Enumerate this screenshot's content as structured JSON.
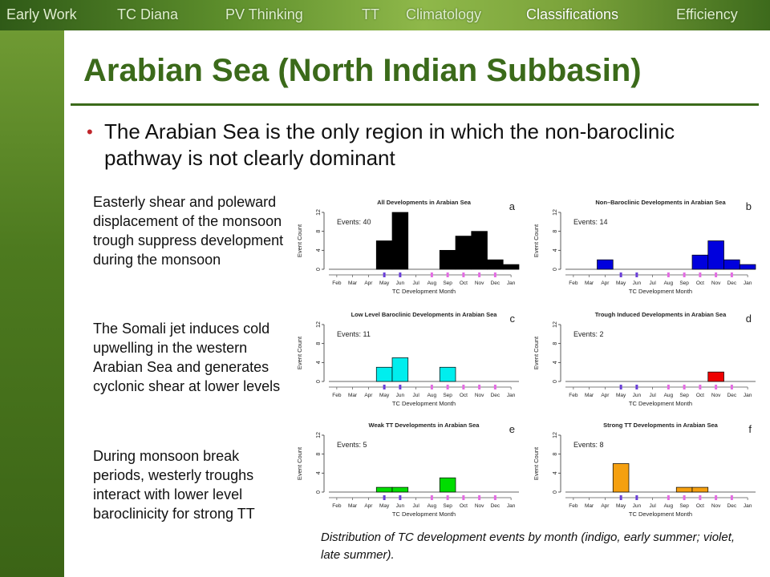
{
  "nav": {
    "tabs": [
      "Early Work",
      "TC Diana",
      "PV Thinking",
      "TT",
      "Climatology",
      "Classifications",
      "Efficiency"
    ],
    "active_index": 5
  },
  "slide": {
    "title": "Arabian Sea (North Indian Subbasin)",
    "bullet": "The Arabian Sea is the only region in which the non-baroclinic pathway is not clearly dominant",
    "side_paragraphs": [
      "Easterly shear and poleward displacement of the monsoon trough suppress development during the monsoon",
      "The Somali jet induces cold upwelling in the western Arabian Sea and generates cyclonic shear at lower levels",
      "During monsoon break periods, westerly troughs interact with lower level baroclinicity for strong TT"
    ],
    "caption": "Distribution of TC development events by month (indigo, early summer; violet, late summer)."
  },
  "colors": {
    "title_green": "#3b6a1a",
    "bullet_red": "#c0262c",
    "early_summer_indigo": "#6a3fd8",
    "late_summer_violet": "#e36ce3"
  },
  "chart_data": [
    {
      "type": "bar",
      "panel_label": "a",
      "title": "All Developments in Arabian Sea",
      "events_label": "Events: 40",
      "categories": [
        "Feb",
        "Mar",
        "Apr",
        "May",
        "Jun",
        "Jul",
        "Aug",
        "Sep",
        "Oct",
        "Nov",
        "Dec",
        "Jan"
      ],
      "values": [
        0,
        0,
        0,
        6,
        12,
        0,
        0,
        4,
        7,
        8,
        2,
        1
      ],
      "color": "#000000",
      "xlabel": "TC Development Month",
      "ylabel": "Event Count",
      "yticks": [
        0,
        4,
        8,
        12
      ],
      "ylim": [
        0,
        12
      ]
    },
    {
      "type": "bar",
      "panel_label": "b",
      "title": "Non–Baroclinic Developments in Arabian Sea",
      "events_label": "Events: 14",
      "categories": [
        "Feb",
        "Mar",
        "Apr",
        "May",
        "Jun",
        "Jul",
        "Aug",
        "Sep",
        "Oct",
        "Nov",
        "Dec",
        "Jan"
      ],
      "values": [
        0,
        0,
        2,
        0,
        0,
        0,
        0,
        0,
        3,
        6,
        2,
        1
      ],
      "color": "#0000dd",
      "xlabel": "TC Development Month",
      "ylabel": "Event Count",
      "yticks": [
        0,
        4,
        8,
        12
      ],
      "ylim": [
        0,
        12
      ]
    },
    {
      "type": "bar",
      "panel_label": "c",
      "title": "Low Level Baroclinic Developments in Arabian Sea",
      "events_label": "Events: 11",
      "categories": [
        "Feb",
        "Mar",
        "Apr",
        "May",
        "Jun",
        "Jul",
        "Aug",
        "Sep",
        "Oct",
        "Nov",
        "Dec",
        "Jan"
      ],
      "values": [
        0,
        0,
        0,
        3,
        5,
        0,
        0,
        3,
        0,
        0,
        0,
        0
      ],
      "color": "#00eeee",
      "xlabel": "TC Development Month",
      "ylabel": "Event Count",
      "yticks": [
        0,
        4,
        8,
        12
      ],
      "ylim": [
        0,
        12
      ]
    },
    {
      "type": "bar",
      "panel_label": "d",
      "title": "Trough Induced Developments in Arabian Sea",
      "events_label": "Events: 2",
      "categories": [
        "Feb",
        "Mar",
        "Apr",
        "May",
        "Jun",
        "Jul",
        "Aug",
        "Sep",
        "Oct",
        "Nov",
        "Dec",
        "Jan"
      ],
      "values": [
        0,
        0,
        0,
        0,
        0,
        0,
        0,
        0,
        0,
        2,
        0,
        0
      ],
      "color": "#ee0000",
      "xlabel": "TC Development Month",
      "ylabel": "Event Count",
      "yticks": [
        0,
        4,
        8,
        12
      ],
      "ylim": [
        0,
        12
      ]
    },
    {
      "type": "bar",
      "panel_label": "e",
      "title": "Weak TT Developments in Arabian Sea",
      "events_label": "Events: 5",
      "categories": [
        "Feb",
        "Mar",
        "Apr",
        "May",
        "Jun",
        "Jul",
        "Aug",
        "Sep",
        "Oct",
        "Nov",
        "Dec",
        "Jan"
      ],
      "values": [
        0,
        0,
        0,
        1,
        1,
        0,
        0,
        3,
        0,
        0,
        0,
        0
      ],
      "color": "#00dd00",
      "xlabel": "TC Development Month",
      "ylabel": "Event Count",
      "yticks": [
        0,
        4,
        8,
        12
      ],
      "ylim": [
        0,
        12
      ]
    },
    {
      "type": "bar",
      "panel_label": "f",
      "title": "Strong TT Developments in Arabian Sea",
      "events_label": "Events: 8",
      "categories": [
        "Feb",
        "Mar",
        "Apr",
        "May",
        "Jun",
        "Jul",
        "Aug",
        "Sep",
        "Oct",
        "Nov",
        "Dec",
        "Jan"
      ],
      "values": [
        0,
        0,
        0,
        6,
        0,
        0,
        0,
        1,
        1,
        0,
        0,
        0
      ],
      "color": "#f5a010",
      "xlabel": "TC Development Month",
      "ylabel": "Event Count",
      "yticks": [
        0,
        4,
        8,
        12
      ],
      "ylim": [
        0,
        12
      ]
    }
  ]
}
